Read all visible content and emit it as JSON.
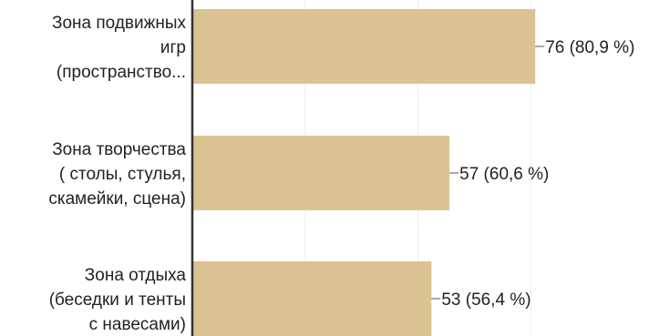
{
  "chart_data": {
    "type": "bar",
    "orientation": "horizontal",
    "categories": [
      [
        "Зона подвижных",
        "игр",
        "(пространство..."
      ],
      [
        "Зона творчества",
        "( столы, стулья,",
        "скамейки, сцена)"
      ],
      [
        "Зона отдыха",
        "(беседки и тенты",
        "с навесами)"
      ]
    ],
    "values": [
      76,
      57,
      53
    ],
    "data_labels": [
      "76 (80,9 %)",
      "57 (60,6 %)",
      "53 (56,4 %)"
    ],
    "bar_color": "#dbc393",
    "xlim": [
      0,
      94
    ],
    "grid": true
  }
}
